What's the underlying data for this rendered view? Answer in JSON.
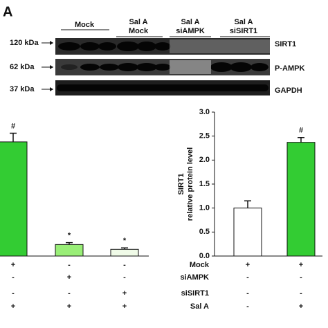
{
  "panel_label": "A",
  "blot": {
    "columns": [
      [
        "Mock"
      ],
      [
        "Sal A",
        "Mock"
      ],
      [
        "Sal A",
        "siAMPK"
      ],
      [
        "Sal A",
        "siSIRT1"
      ]
    ],
    "mw_labels": [
      "120 kDa",
      "62 kDa",
      "37 kDa"
    ],
    "proteins": [
      "SIRT1",
      "P-AMPK",
      "GAPDH"
    ]
  },
  "chart_data": [
    {
      "type": "bar",
      "values": [
        2.38,
        0.24,
        0.14
      ],
      "errors": [
        0.18,
        0.04,
        0.03
      ],
      "annotations": [
        "#",
        "*",
        "*"
      ],
      "colors": [
        "#33cc33",
        "#99ee77",
        "#f0fbe8"
      ],
      "ylim": [
        0,
        3
      ],
      "treatments": [
        {
          "signs": [
            "+",
            "-",
            "-"
          ]
        },
        {
          "signs": [
            "-",
            "+",
            "-"
          ]
        },
        {
          "signs": [
            "-",
            "-",
            "+"
          ]
        },
        {
          "signs": [
            "+",
            "+",
            "+"
          ]
        }
      ]
    },
    {
      "type": "bar",
      "ylabel": [
        "SIRT1",
        "relative protein level"
      ],
      "values": [
        1.0,
        2.37
      ],
      "errors": [
        0.15,
        0.1
      ],
      "annotations": [
        null,
        "#"
      ],
      "colors": [
        "#ffffff",
        "#33cc33"
      ],
      "ylim": [
        0,
        3
      ],
      "yticks": [
        {
          "value": 0,
          "label": "0.0"
        },
        {
          "value": 0.5,
          "label": "0.5"
        },
        {
          "value": 1,
          "label": "1.0"
        },
        {
          "value": 1.5,
          "label": "1.5"
        },
        {
          "value": 2,
          "label": "2.0"
        },
        {
          "value": 2.5,
          "label": "2.5"
        },
        {
          "value": 3,
          "label": "3.0"
        }
      ],
      "treatments": [
        {
          "name": "Mock",
          "signs": [
            "+",
            "+"
          ]
        },
        {
          "name": "siAMPK",
          "signs": [
            "-",
            "-"
          ]
        },
        {
          "name": "siSIRT1",
          "signs": [
            "-",
            "-"
          ]
        },
        {
          "name": "Sal A",
          "signs": [
            "-",
            "+"
          ]
        }
      ]
    }
  ]
}
